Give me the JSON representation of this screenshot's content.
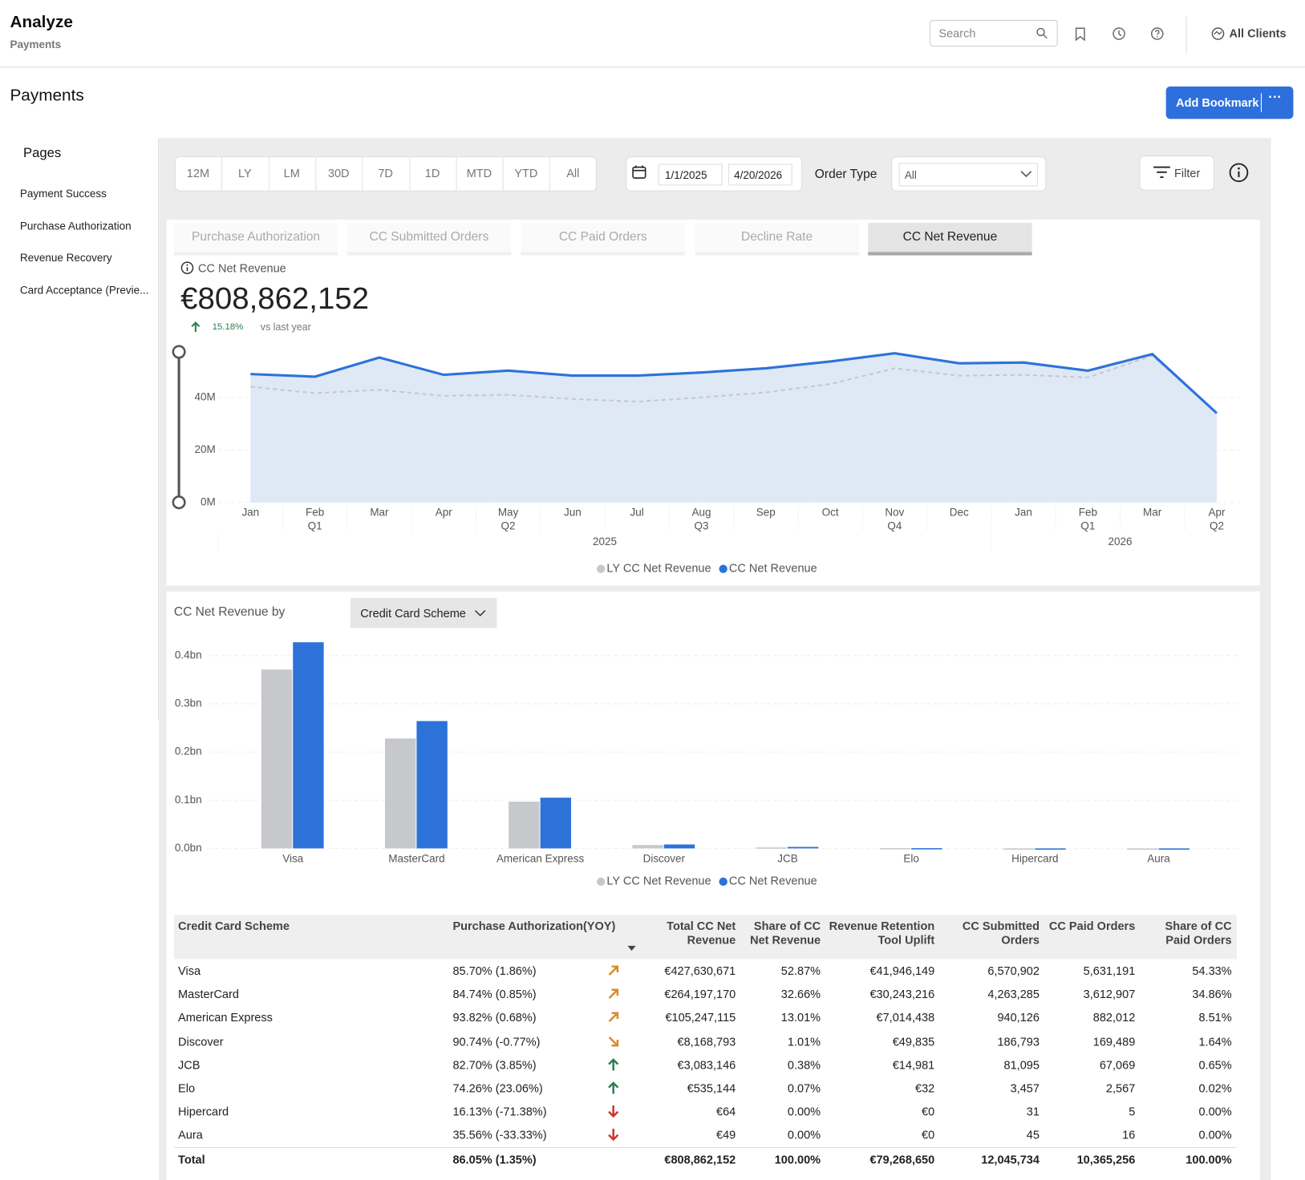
{
  "header": {
    "title": "Analyze",
    "subtitle": "Payments",
    "search_placeholder": "Search",
    "clients": "All Clients"
  },
  "page_title": "Payments",
  "bookmark_button": "Add Bookmark",
  "sidebar": {
    "title": "Pages",
    "items": [
      "Payment Success",
      "Purchase Authorization",
      "Revenue Recovery",
      "Card Acceptance (Previe..."
    ]
  },
  "toolbar": {
    "periods": [
      "12M",
      "LY",
      "LM",
      "30D",
      "7D",
      "1D",
      "MTD",
      "YTD",
      "All"
    ],
    "start_date": "1/1/2025",
    "end_date": "4/20/2026",
    "order_type_label": "Order Type",
    "order_type": "All",
    "filter": "Filter"
  },
  "tabs": [
    "Purchase Authorization",
    "CC Submitted Orders",
    "CC Paid Orders",
    "Decline Rate",
    "CC Net Revenue"
  ],
  "active_tab": 4,
  "kpi": {
    "label": "CC Net Revenue",
    "value": "€808,862,152",
    "change": "15.18%",
    "change_note": "vs last year"
  },
  "breakdown": {
    "title": "CC Net Revenue by",
    "dimension": "Credit Card Scheme"
  },
  "chart_data": [
    {
      "type": "line",
      "categories": [
        "Jan",
        "Feb",
        "Mar",
        "Apr",
        "May",
        "Jun",
        "Jul",
        "Aug",
        "Sep",
        "Oct",
        "Nov",
        "Dec",
        "Jan",
        "Feb",
        "Mar",
        "Apr"
      ],
      "quarters": [
        null,
        "Q1",
        null,
        null,
        "Q2",
        null,
        null,
        "Q3",
        null,
        null,
        "Q4",
        null,
        null,
        "Q1",
        null,
        "Q2"
      ],
      "years": [
        {
          "label": "2025",
          "months": 12
        },
        {
          "label": "2026",
          "months": 4
        }
      ],
      "series": [
        {
          "name": "LY CC Net Revenue",
          "color": "#c6c8cc",
          "style": "dashed",
          "values": [
            44100000,
            41600000,
            42900000,
            40600000,
            41000000,
            39400000,
            38400000,
            40000000,
            41900000,
            45100000,
            51100000,
            48300000,
            48600000,
            47600000,
            55900000,
            34000000
          ]
        },
        {
          "name": "CC Net Revenue",
          "color": "#2d72d9",
          "style": "solid",
          "fill": "#dfe9f5",
          "values": [
            48900000,
            47900000,
            55200000,
            48600000,
            50200000,
            48300000,
            48300000,
            49500000,
            51100000,
            53700000,
            56800000,
            53000000,
            53300000,
            50200000,
            56500000,
            34000000
          ]
        }
      ],
      "ylim": [
        0,
        58000000
      ],
      "yticks": [
        {
          "value": 0,
          "label": "0M"
        },
        {
          "value": 20000000,
          "label": "20M"
        },
        {
          "value": 40000000,
          "label": "40M"
        }
      ],
      "grid": true,
      "legend": "bottom"
    },
    {
      "type": "bar",
      "categories": [
        "Visa",
        "MasterCard",
        "American Express",
        "Discover",
        "JCB",
        "Elo",
        "Hipercard",
        "Aura"
      ],
      "series": [
        {
          "name": "LY CC Net Revenue",
          "color": "#c6c8cc",
          "values": [
            371000000,
            228000000,
            97000000,
            7000000,
            2000000,
            500000,
            0,
            0
          ]
        },
        {
          "name": "CC Net Revenue",
          "color": "#2d72d9",
          "values": [
            427630671,
            264197170,
            105247115,
            8168793,
            3083146,
            535144,
            64,
            49
          ]
        }
      ],
      "ylim": [
        0,
        440000000
      ],
      "yticks": [
        {
          "value": 0,
          "label": "0.0bn"
        },
        {
          "value": 100000000,
          "label": "0.1bn"
        },
        {
          "value": 200000000,
          "label": "0.2bn"
        },
        {
          "value": 300000000,
          "label": "0.3bn"
        },
        {
          "value": 400000000,
          "label": "0.4bn"
        }
      ],
      "grid": true,
      "legend": "bottom"
    }
  ],
  "table": {
    "columns": [
      "Credit Card Scheme",
      "Purchase Authorization(YOY)",
      "Total CC Net Revenue",
      "Share of CC Net Revenue",
      "Revenue Retention Tool Uplift",
      "CC Submitted Orders",
      "CC Paid Orders",
      "Share of CC Paid Orders"
    ],
    "rows": [
      {
        "cells": [
          "Visa",
          "85.70% (1.86%)",
          "€427,630,671",
          "52.87%",
          "€41,946,149",
          "6,570,902",
          "5,631,191",
          "54.33%"
        ],
        "trend": "up"
      },
      {
        "cells": [
          "MasterCard",
          "84.74% (0.85%)",
          "€264,197,170",
          "32.66%",
          "€30,243,216",
          "4,263,285",
          "3,612,907",
          "34.86%"
        ],
        "trend": "up"
      },
      {
        "cells": [
          "American Express",
          "93.82% (0.68%)",
          "€105,247,115",
          "13.01%",
          "€7,014,438",
          "940,126",
          "882,012",
          "8.51%"
        ],
        "trend": "up"
      },
      {
        "cells": [
          "Discover",
          "90.74% (-0.77%)",
          "€8,168,793",
          "1.01%",
          "€49,835",
          "186,793",
          "169,489",
          "1.64%"
        ],
        "trend": "down"
      },
      {
        "cells": [
          "JCB",
          "82.70% (3.85%)",
          "€3,083,146",
          "0.38%",
          "€14,981",
          "81,095",
          "67,069",
          "0.65%"
        ],
        "trend": "strong-up"
      },
      {
        "cells": [
          "Elo",
          "74.26% (23.06%)",
          "€535,144",
          "0.07%",
          "€32",
          "3,457",
          "2,567",
          "0.02%"
        ],
        "trend": "strong-up"
      },
      {
        "cells": [
          "Hipercard",
          "16.13% (-71.38%)",
          "€64",
          "0.00%",
          "€0",
          "31",
          "5",
          "0.00%"
        ],
        "trend": "strong-down"
      },
      {
        "cells": [
          "Aura",
          "35.56% (-33.33%)",
          "€49",
          "0.00%",
          "€0",
          "45",
          "16",
          "0.00%"
        ],
        "trend": "strong-down"
      }
    ],
    "total": [
      "Total",
      "86.05% (1.35%)",
      "€808,862,152",
      "100.00%",
      "€79,268,650",
      "12,045,734",
      "10,365,256",
      "100.00%"
    ]
  }
}
